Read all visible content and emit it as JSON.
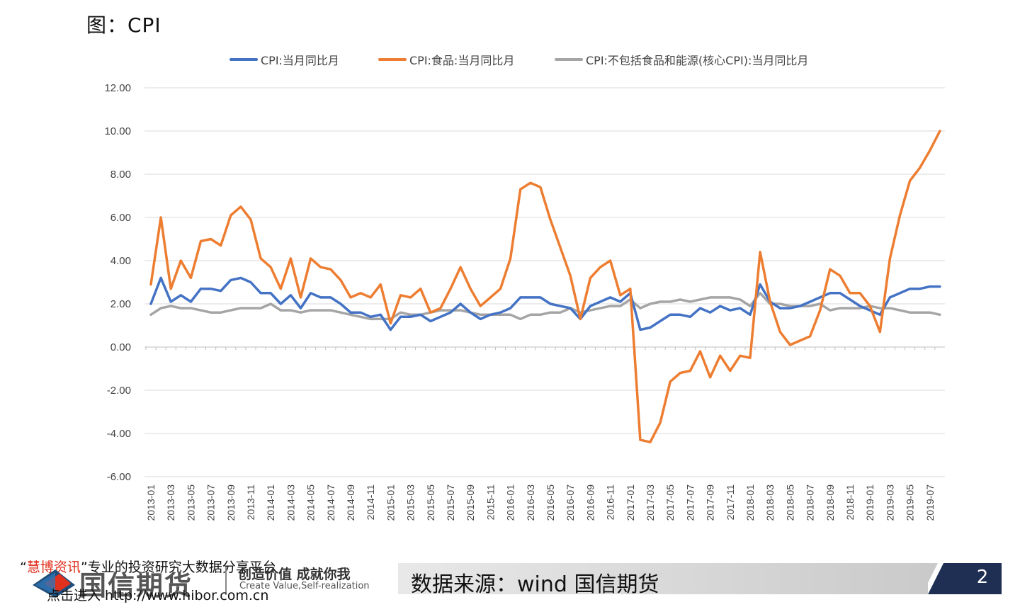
{
  "page": {
    "title": "图：CPI",
    "promo_prefix": "“",
    "promo_brand": "慧博资讯",
    "promo_text": "”专业的投资研究大数据分享平台",
    "promo_link": "点击进入 http://www.hibor.com.cn",
    "logo_name": "国信期货",
    "logo_slogan": "创造价值 成就你我",
    "logo_slogan_en": "Create Value,Self-realization",
    "source": "数据来源：wind 国信期货",
    "page_number": "2"
  },
  "colors": {
    "series_total": "#4472c4",
    "series_food": "#ed7d31",
    "series_core": "#a5a5a5",
    "grid": "#d9d9d9",
    "badge": "#1f2f54"
  },
  "chart_data": {
    "type": "line",
    "ylim": [
      -6,
      12
    ],
    "yticks": [
      "12.00",
      "10.00",
      "8.00",
      "6.00",
      "4.00",
      "2.00",
      "0.00",
      "-2.00",
      "-4.00",
      "-6.00"
    ],
    "ytick_values": [
      12,
      10,
      8,
      6,
      4,
      2,
      0,
      -2,
      -4,
      -6
    ],
    "x_start": "2013-01",
    "xtick_labels": [
      "2013-01",
      "2013-03",
      "2013-05",
      "2013-07",
      "2013-09",
      "2013-11",
      "2014-01",
      "2014-03",
      "2014-05",
      "2014-07",
      "2014-09",
      "2014-11",
      "2015-01",
      "2015-03",
      "2015-05",
      "2015-07",
      "2015-09",
      "2015-11",
      "2016-01",
      "2016-03",
      "2016-05",
      "2016-07",
      "2016-09",
      "2016-11",
      "2017-01",
      "2017-03",
      "2017-05",
      "2017-07",
      "2017-09",
      "2017-11",
      "2018-01",
      "2018-03",
      "2018-05",
      "2018-07",
      "2018-09",
      "2018-11",
      "2019-01",
      "2019-03",
      "2019-05",
      "2019-07"
    ],
    "legend_position": "top",
    "grid": true,
    "series": [
      {
        "name": "CPI:当月同比月",
        "values": [
          2.0,
          3.2,
          2.1,
          2.4,
          2.1,
          2.7,
          2.7,
          2.6,
          3.1,
          3.2,
          3.0,
          2.5,
          2.5,
          2.0,
          2.4,
          1.8,
          2.5,
          2.3,
          2.3,
          2.0,
          1.6,
          1.6,
          1.4,
          1.5,
          0.8,
          1.4,
          1.4,
          1.5,
          1.2,
          1.4,
          1.6,
          2.0,
          1.6,
          1.3,
          1.5,
          1.6,
          1.8,
          2.3,
          2.3,
          2.3,
          2.0,
          1.9,
          1.8,
          1.3,
          1.9,
          2.1,
          2.3,
          2.1,
          2.5,
          0.8,
          0.9,
          1.2,
          1.5,
          1.5,
          1.4,
          1.8,
          1.6,
          1.9,
          1.7,
          1.8,
          1.5,
          2.9,
          2.1,
          1.8,
          1.8,
          1.9,
          2.1,
          2.3,
          2.5,
          2.5,
          2.2,
          1.9,
          1.7,
          1.5,
          2.3,
          2.5,
          2.7,
          2.7,
          2.8,
          2.8
        ]
      },
      {
        "name": "CPI:食品:当月同比月",
        "values": [
          2.9,
          6.0,
          2.7,
          4.0,
          3.2,
          4.9,
          5.0,
          4.7,
          6.1,
          6.5,
          5.9,
          4.1,
          3.7,
          2.7,
          4.1,
          2.3,
          4.1,
          3.7,
          3.6,
          3.1,
          2.3,
          2.5,
          2.3,
          2.9,
          1.1,
          2.4,
          2.3,
          2.7,
          1.6,
          1.8,
          2.7,
          3.7,
          2.7,
          1.9,
          2.3,
          2.7,
          4.1,
          7.3,
          7.6,
          7.4,
          5.9,
          4.6,
          3.3,
          1.3,
          3.2,
          3.7,
          4.0,
          2.4,
          2.7,
          -4.3,
          -4.4,
          -3.5,
          -1.6,
          -1.2,
          -1.1,
          -0.2,
          -1.4,
          -0.4,
          -1.1,
          -0.4,
          -0.5,
          4.4,
          2.1,
          0.7,
          0.1,
          0.3,
          0.5,
          1.7,
          3.6,
          3.3,
          2.5,
          2.5,
          1.9,
          0.7,
          4.1,
          6.1,
          7.7,
          8.3,
          9.1,
          10.0
        ]
      },
      {
        "name": "CPI:不包括食品和能源(核心CPI):当月同比月",
        "values": [
          1.5,
          1.8,
          1.9,
          1.8,
          1.8,
          1.7,
          1.6,
          1.6,
          1.7,
          1.8,
          1.8,
          1.8,
          2.0,
          1.7,
          1.7,
          1.6,
          1.7,
          1.7,
          1.7,
          1.6,
          1.5,
          1.4,
          1.3,
          1.3,
          1.3,
          1.6,
          1.5,
          1.5,
          1.6,
          1.7,
          1.7,
          1.7,
          1.6,
          1.5,
          1.5,
          1.5,
          1.5,
          1.3,
          1.5,
          1.5,
          1.6,
          1.6,
          1.8,
          1.6,
          1.7,
          1.8,
          1.9,
          1.9,
          2.2,
          1.8,
          2.0,
          2.1,
          2.1,
          2.2,
          2.1,
          2.2,
          2.3,
          2.3,
          2.3,
          2.2,
          1.9,
          2.5,
          2.0,
          2.0,
          1.9,
          1.9,
          1.9,
          2.0,
          1.7,
          1.8,
          1.8,
          1.8,
          1.9,
          1.8,
          1.8,
          1.7,
          1.6,
          1.6,
          1.6,
          1.5
        ]
      }
    ]
  }
}
